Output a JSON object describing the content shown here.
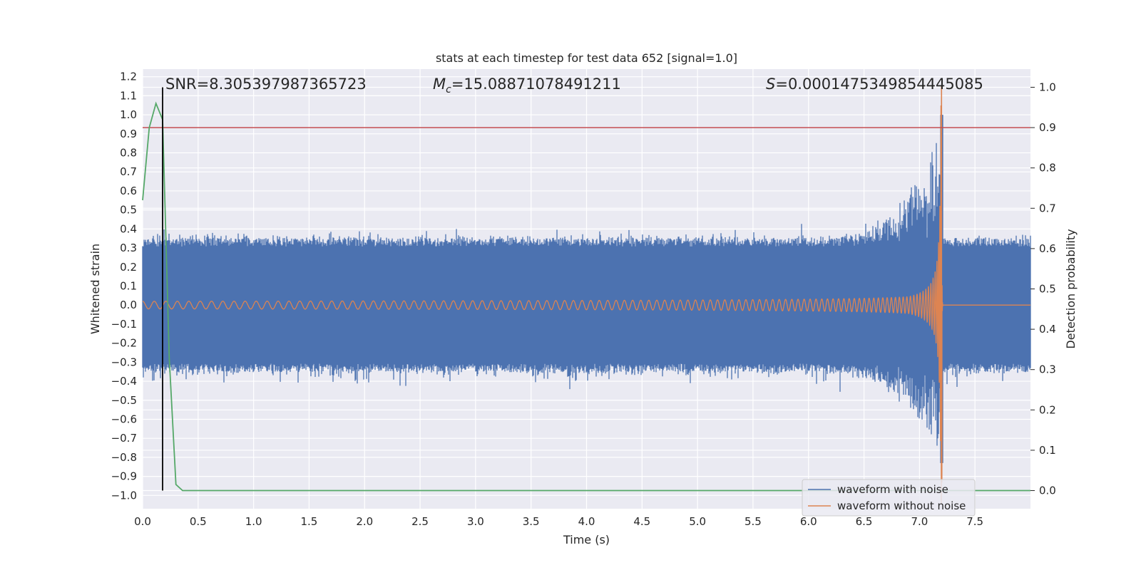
{
  "chart_data": {
    "type": "line",
    "title": "stats at each timestep for test data 652 [signal=1.0]",
    "xlabel": "Time (s)",
    "ylabel": "Whitened strain",
    "ylabel_right": "Detection probability",
    "xlim": [
      0.0,
      8.0
    ],
    "ylim": [
      -1.07,
      1.24
    ],
    "ylim_right": [
      -0.045,
      1.045
    ],
    "x_ticks": [
      "0.0",
      "0.5",
      "1.0",
      "1.5",
      "2.0",
      "2.5",
      "3.0",
      "3.5",
      "4.0",
      "4.5",
      "5.0",
      "5.5",
      "6.0",
      "6.5",
      "7.0",
      "7.5"
    ],
    "y_ticks": [
      "1.2",
      "1.1",
      "1.0",
      "0.9",
      "0.8",
      "0.7",
      "0.6",
      "0.5",
      "0.4",
      "0.3",
      "0.2",
      "0.1",
      "0.0",
      "−0.1",
      "−0.2",
      "−0.3",
      "−0.4",
      "−0.5",
      "−0.6",
      "−0.7",
      "−0.8",
      "−0.9",
      "−1.0"
    ],
    "y_ticks_right": [
      "1.0",
      "0.9",
      "0.8",
      "0.7",
      "0.6",
      "0.5",
      "0.4",
      "0.3",
      "0.2",
      "0.1",
      "0.0"
    ],
    "annotations": {
      "snr": "SNR=8.305397987365723",
      "mc_symbol": "M",
      "mc_sub": "c",
      "mc_value": "=15.08871078491211",
      "s_symbol": "S",
      "s_value": "=0.0001475349854445085"
    },
    "grid": true,
    "legend_position": "lower-right",
    "series": [
      {
        "name": "waveform with noise",
        "color": "#4c72b0",
        "noise_envelope": 0.35,
        "merger_time": 7.2,
        "peak_amplitude": 1.0,
        "min_amplitude": -0.83
      },
      {
        "name": "waveform without noise",
        "color": "#dd8452",
        "start_amplitude": 0.02,
        "merger_time": 7.2,
        "peak_amplitude": 1.15,
        "min_amplitude": -0.93,
        "ringdown_end": 7.22
      }
    ],
    "detection_probability": {
      "color": "#55a868",
      "axis": "right",
      "x": [
        0.0,
        0.06,
        0.12,
        0.18,
        0.24,
        0.3,
        0.36,
        0.5,
        1.0,
        2.0,
        3.0,
        4.0,
        5.0,
        6.0,
        7.0,
        7.5,
        8.0
      ],
      "y": [
        0.72,
        0.9,
        0.96,
        0.92,
        0.33,
        0.015,
        0.0,
        0.0,
        0.0,
        0.0,
        0.0,
        0.0,
        0.0,
        0.0,
        0.0,
        0.0,
        0.0
      ]
    },
    "threshold_line": {
      "color": "#c44e52",
      "value": 0.9,
      "axis": "right"
    },
    "marker_line": {
      "color": "#000000",
      "x": 0.18
    }
  }
}
